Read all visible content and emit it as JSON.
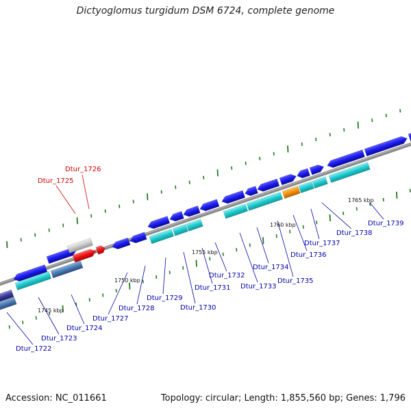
{
  "title": "Dictyoglomus turgidum DSM 6724, complete genome",
  "footer": {
    "accession": "Accession: NC_011661",
    "summary": "Topology: circular; Length: 1,855,560 bp; Genes: 1,796"
  },
  "colors": {
    "cds": "#1a1aee",
    "cds_light": "#1ec8cc",
    "rna_red": "#ee1111",
    "gray": "#c8c8c8",
    "orange": "#f0900a",
    "steel": "#4a7ab0",
    "label_blue": "#0000aa",
    "label_red": "#cc0000",
    "tick": "#1e7a1e"
  },
  "kbp_labels": [
    "1745 kbp",
    "1750 kbp",
    "1755 kbp",
    "1760 kbp",
    "1765 kbp"
  ],
  "gene_labels": [
    {
      "text": "Dtur_1722",
      "color": "blue"
    },
    {
      "text": "Dtur_1723",
      "color": "blue"
    },
    {
      "text": "Dtur_1724",
      "color": "blue"
    },
    {
      "text": "Dtur_1725",
      "color": "red"
    },
    {
      "text": "Dtur_1726",
      "color": "red"
    },
    {
      "text": "Dtur_1727",
      "color": "blue"
    },
    {
      "text": "Dtur_1728",
      "color": "blue"
    },
    {
      "text": "Dtur_1729",
      "color": "blue"
    },
    {
      "text": "Dtur_1730",
      "color": "blue"
    },
    {
      "text": "Dtur_1731",
      "color": "blue"
    },
    {
      "text": "Dtur_1732",
      "color": "blue"
    },
    {
      "text": "Dtur_1733",
      "color": "blue"
    },
    {
      "text": "Dtur_1734",
      "color": "blue"
    },
    {
      "text": "Dtur_1735",
      "color": "blue"
    },
    {
      "text": "Dtur_1736",
      "color": "blue"
    },
    {
      "text": "Dtur_1737",
      "color": "blue"
    },
    {
      "text": "Dtur_1738",
      "color": "blue"
    },
    {
      "text": "Dtur_1739",
      "color": "blue"
    }
  ]
}
